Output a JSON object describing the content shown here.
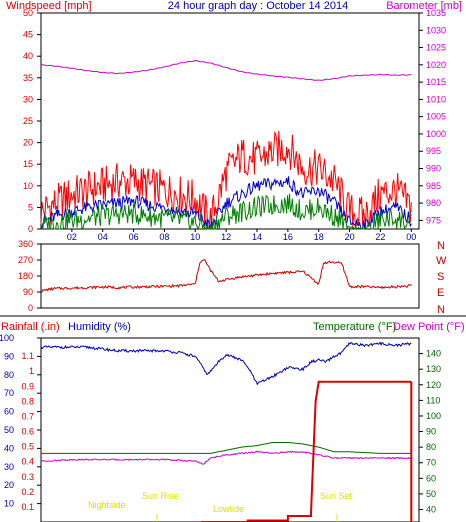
{
  "header": {
    "windspeed_label": "Windspeed [mph]",
    "title": "24 hour graph day : October 14 2014",
    "barometer_label": "Barometer [mb]"
  },
  "colors": {
    "windspeed": "#e00000",
    "barometer": "#cc00cc",
    "gust": "#ff0000",
    "avg_wind": "#0000cc",
    "calm": "#008000",
    "winddir": "#cc0000",
    "humidity": "#0000aa",
    "temperature": "#006600",
    "dewpoint": "#cc00cc",
    "rain": "#dd0000",
    "sun_event": "#e8e800",
    "frame": "#000000"
  },
  "bottom_header": {
    "rainfall_label": "Rainfall (.in)",
    "humidity_label": "Humidity (%)",
    "temperature_label": "Temperature (°F)",
    "dewpoint_label": "Dew Point (°F)"
  },
  "sun_events": {
    "nightside": "Nightside",
    "sun_rise": "Sun Rise",
    "lowtide": "Lowtide",
    "sun_set": "Sun Set"
  },
  "compass_labels": [
    "N",
    "W",
    "S",
    "E",
    "N"
  ],
  "chart_data": [
    {
      "type": "line",
      "name": "wind-barometer",
      "x_tick_labels": [
        "02",
        "04",
        "06",
        "08",
        "10",
        "12",
        "14",
        "16",
        "18",
        "20",
        "22",
        "00"
      ],
      "x_hours": [
        2,
        4,
        6,
        8,
        10,
        12,
        14,
        16,
        18,
        20,
        22,
        24
      ],
      "xlim": [
        0,
        24.5
      ],
      "ylabel": "Windspeed [mph]",
      "ylim": [
        0,
        50
      ],
      "y_ticks": [
        0,
        5,
        10,
        15,
        20,
        25,
        30,
        35,
        40,
        45,
        50
      ],
      "y2label": "Barometer [mb]",
      "y2lim": [
        972.5,
        1035
      ],
      "y2_ticks": [
        975,
        980,
        985,
        990,
        995,
        1000,
        1005,
        1010,
        1015,
        1020,
        1025,
        1030,
        1035
      ],
      "series": [
        {
          "axis": "y2",
          "x": [
            0,
            1,
            2,
            3,
            4,
            5,
            6,
            7,
            8,
            9,
            10,
            11,
            12,
            13,
            14,
            15,
            16,
            17,
            18,
            19,
            20,
            21,
            22,
            23,
            24
          ],
          "values": [
            1020.0,
            1019.6,
            1019.0,
            1018.3,
            1017.8,
            1017.5,
            1017.9,
            1018.5,
            1019.4,
            1020.5,
            1021.2,
            1020.5,
            1019.2,
            1018.0,
            1017.3,
            1016.8,
            1016.4,
            1015.9,
            1015.5,
            1016.0,
            1016.8,
            1017.0,
            1017.2,
            1017.0,
            1017.1
          ]
        },
        {
          "x": [
            0,
            1,
            2,
            3,
            4,
            5,
            6,
            7,
            8,
            9,
            10,
            11,
            12,
            13,
            14,
            15,
            16,
            17,
            18,
            19,
            20,
            21,
            22,
            23,
            24
          ],
          "values": [
            4,
            6,
            8,
            9,
            10,
            11,
            11,
            10,
            9,
            8,
            7,
            2,
            13,
            17,
            16,
            18,
            19,
            14,
            14,
            11,
            4,
            3,
            8,
            9,
            5
          ]
        },
        {
          "x": [
            0,
            1,
            2,
            3,
            4,
            5,
            6,
            7,
            8,
            9,
            10,
            11,
            12,
            13,
            14,
            15,
            16,
            17,
            18,
            19,
            20,
            21,
            22,
            23,
            24
          ],
          "values": [
            1.5,
            3,
            4,
            5,
            5.5,
            6,
            6.5,
            5.5,
            5,
            4,
            3.5,
            0.5,
            6,
            8,
            10,
            10.5,
            11,
            8,
            9,
            6,
            1.5,
            1,
            4,
            5,
            2
          ]
        },
        {
          "x": [
            0,
            1,
            2,
            3,
            4,
            5,
            6,
            7,
            8,
            9,
            10,
            11,
            12,
            13,
            14,
            15,
            16,
            17,
            18,
            19,
            20,
            21,
            22,
            23,
            24
          ],
          "values": [
            0.5,
            1.5,
            2,
            2.5,
            3,
            3.5,
            3.5,
            3,
            2.5,
            2,
            1.5,
            0,
            3,
            4,
            5,
            5.5,
            6,
            4,
            5,
            3,
            0,
            0,
            2,
            2.5,
            1
          ]
        }
      ]
    },
    {
      "type": "line",
      "name": "wind-direction",
      "ylim": [
        0,
        360
      ],
      "y_ticks": [
        0,
        90,
        180,
        270,
        360
      ],
      "series": [
        {
          "x": [
            0,
            0.5,
            1,
            2,
            3,
            4,
            5,
            6,
            7,
            8,
            9,
            10,
            10.3,
            10.6,
            11,
            11.5,
            12,
            13,
            14,
            15,
            16,
            17,
            18,
            18.3,
            18.8,
            19.5,
            20,
            21,
            22,
            23,
            24
          ],
          "values": [
            95,
            105,
            110,
            112,
            115,
            118,
            115,
            118,
            120,
            122,
            125,
            135,
            260,
            270,
            210,
            150,
            160,
            175,
            185,
            195,
            200,
            205,
            135,
            250,
            260,
            250,
            120,
            120,
            115,
            120,
            125
          ]
        }
      ]
    },
    {
      "type": "line",
      "name": "rain-humidity-temperature",
      "ylabel": "Humidity (%)",
      "ylim": [
        0,
        100
      ],
      "y_ticks": [
        10,
        20,
        30,
        40,
        50,
        60,
        70,
        80,
        90,
        100
      ],
      "rain_ticks": [
        0.1,
        0.2,
        0.3,
        0.4,
        0.5,
        0.6,
        0.7,
        0.8,
        0.9,
        1,
        1.1
      ],
      "y2label": "Temperature (°F)",
      "y2lim": [
        32,
        150
      ],
      "y2_ticks": [
        40,
        50,
        60,
        70,
        80,
        90,
        100,
        110,
        120,
        130,
        140
      ],
      "series": [
        {
          "x": [
            0,
            1,
            2,
            3,
            4,
            5,
            6,
            7,
            8,
            9,
            10,
            10.8,
            11.5,
            12,
            13,
            13.5,
            14,
            15,
            16,
            17,
            17.5,
            18,
            18.5,
            19,
            19.5,
            20,
            21,
            22,
            23,
            24
          ],
          "values": [
            95,
            95,
            95,
            95,
            94,
            93,
            93,
            93,
            93,
            92,
            90,
            80,
            87,
            91,
            88,
            83,
            75,
            79,
            84,
            83,
            87,
            88,
            87,
            90,
            92,
            97,
            96,
            97,
            96,
            97
          ]
        },
        {
          "axis": "y2",
          "x": [
            0,
            2,
            4,
            6,
            8,
            10,
            11,
            12,
            13,
            14,
            15,
            16,
            17,
            18,
            19,
            20,
            22,
            24
          ],
          "values": [
            76,
            76,
            76,
            76,
            76,
            76,
            76,
            78,
            80,
            81,
            83,
            83,
            82,
            80,
            77,
            77,
            76,
            76
          ]
        },
        {
          "axis": "y2",
          "x": [
            0,
            2,
            4,
            6,
            8,
            10,
            10.5,
            11,
            12,
            13,
            14,
            15,
            16,
            17,
            18,
            19,
            20,
            22,
            24
          ],
          "values": [
            71,
            72,
            72,
            72,
            72,
            71,
            69,
            73,
            75,
            76,
            77,
            76,
            77,
            77,
            75,
            73,
            73,
            73,
            73
          ]
        },
        {
          "axis": "rain",
          "x": [
            10.4,
            13.4,
            13.4,
            16.0,
            16.0,
            17.5,
            17.5,
            17.8,
            18.0,
            24
          ],
          "values": [
            0,
            0,
            0.01,
            0.01,
            0.04,
            0.04,
            0.06,
            0.8,
            0.93,
            0.93
          ]
        }
      ]
    }
  ]
}
